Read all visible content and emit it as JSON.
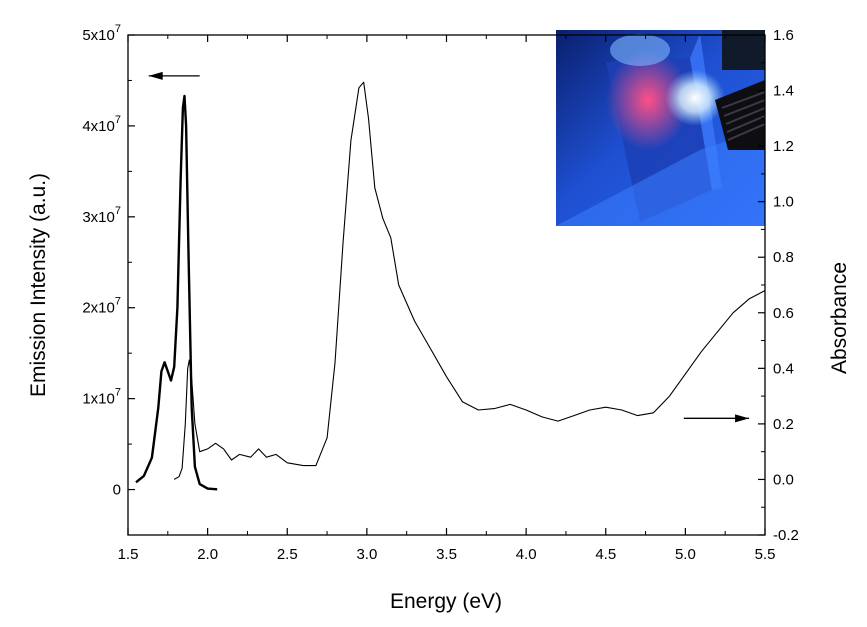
{
  "chart_data": {
    "type": "line",
    "xlabel": "Energy (eV)",
    "ylabel_left": "Emission Intensity (a.u.)",
    "ylabel_right": "Absorbance",
    "xlim": [
      1.5,
      5.5
    ],
    "ylim_left": [
      -5000000,
      50000000
    ],
    "ylim_right": [
      -0.2,
      1.6
    ],
    "x_ticks": [
      "1.5",
      "2.0",
      "2.5",
      "3.0",
      "3.5",
      "4.0",
      "4.5",
      "5.0",
      "5.5"
    ],
    "x_tick_values": [
      1.5,
      2.0,
      2.5,
      3.0,
      3.5,
      4.0,
      4.5,
      5.0,
      5.5
    ],
    "left_ticks": [
      {
        "value": 0,
        "mantissa": "0",
        "exponent": ""
      },
      {
        "value": 10000000,
        "mantissa": "1x10",
        "exponent": "7"
      },
      {
        "value": 20000000,
        "mantissa": "2x10",
        "exponent": "7"
      },
      {
        "value": 30000000,
        "mantissa": "3x10",
        "exponent": "7"
      },
      {
        "value": 40000000,
        "mantissa": "4x10",
        "exponent": "7"
      },
      {
        "value": 50000000,
        "mantissa": "5x10",
        "exponent": "7"
      }
    ],
    "right_ticks": [
      "-0.2",
      "0.0",
      "0.2",
      "0.4",
      "0.6",
      "0.8",
      "1.0",
      "1.2",
      "1.4",
      "1.6"
    ],
    "right_tick_values": [
      -0.2,
      0.0,
      0.2,
      0.4,
      0.6,
      0.8,
      1.0,
      1.2,
      1.4,
      1.6
    ],
    "series": [
      {
        "axis": "left",
        "points": [
          [
            1.55,
            800000
          ],
          [
            1.6,
            1500000
          ],
          [
            1.65,
            3500000
          ],
          [
            1.69,
            9000000
          ],
          [
            1.71,
            13000000
          ],
          [
            1.73,
            14000000
          ],
          [
            1.75,
            13000000
          ],
          [
            1.77,
            12000000
          ],
          [
            1.79,
            13500000
          ],
          [
            1.81,
            20000000
          ],
          [
            1.83,
            34000000
          ],
          [
            1.845,
            42000000
          ],
          [
            1.855,
            43300000
          ],
          [
            1.865,
            40000000
          ],
          [
            1.88,
            26000000
          ],
          [
            1.9,
            9000000
          ],
          [
            1.92,
            2500000
          ],
          [
            1.95,
            600000
          ],
          [
            2.0,
            100000
          ],
          [
            2.06,
            30000
          ]
        ]
      },
      {
        "axis": "right",
        "points": [
          [
            1.79,
            0.0
          ],
          [
            1.82,
            0.01
          ],
          [
            1.84,
            0.04
          ],
          [
            1.86,
            0.2
          ],
          [
            1.875,
            0.4
          ],
          [
            1.885,
            0.43
          ],
          [
            1.9,
            0.36
          ],
          [
            1.92,
            0.2
          ],
          [
            1.95,
            0.1
          ],
          [
            2.0,
            0.11
          ],
          [
            2.05,
            0.13
          ],
          [
            2.1,
            0.11
          ],
          [
            2.15,
            0.07
          ],
          [
            2.2,
            0.09
          ],
          [
            2.27,
            0.08
          ],
          [
            2.32,
            0.11
          ],
          [
            2.37,
            0.08
          ],
          [
            2.43,
            0.09
          ],
          [
            2.5,
            0.06
          ],
          [
            2.6,
            0.05
          ],
          [
            2.68,
            0.05
          ],
          [
            2.75,
            0.15
          ],
          [
            2.8,
            0.42
          ],
          [
            2.85,
            0.85
          ],
          [
            2.9,
            1.22
          ],
          [
            2.95,
            1.41
          ],
          [
            2.98,
            1.43
          ],
          [
            3.01,
            1.3
          ],
          [
            3.05,
            1.05
          ],
          [
            3.1,
            0.94
          ],
          [
            3.15,
            0.87
          ],
          [
            3.2,
            0.7
          ],
          [
            3.3,
            0.57
          ],
          [
            3.4,
            0.47
          ],
          [
            3.5,
            0.37
          ],
          [
            3.6,
            0.28
          ],
          [
            3.7,
            0.25
          ],
          [
            3.8,
            0.255
          ],
          [
            3.9,
            0.27
          ],
          [
            4.0,
            0.25
          ],
          [
            4.1,
            0.225
          ],
          [
            4.2,
            0.21
          ],
          [
            4.3,
            0.23
          ],
          [
            4.4,
            0.25
          ],
          [
            4.5,
            0.26
          ],
          [
            4.6,
            0.25
          ],
          [
            4.7,
            0.23
          ],
          [
            4.8,
            0.24
          ],
          [
            4.9,
            0.3
          ],
          [
            5.0,
            0.38
          ],
          [
            5.1,
            0.46
          ],
          [
            5.2,
            0.53
          ],
          [
            5.3,
            0.6
          ],
          [
            5.4,
            0.65
          ],
          [
            5.5,
            0.68
          ]
        ]
      }
    ],
    "arrows": [
      {
        "points_to": "left",
        "axis": "left",
        "x_from": 1.95,
        "x_to": 1.63,
        "y": 45500000
      },
      {
        "points_to": "right",
        "axis": "right",
        "x_from": 4.99,
        "x_to": 5.4,
        "y": 0.22
      }
    ],
    "inset_photo": {
      "position": "top-right",
      "colors": [
        "#0a2a8a",
        "#2c66ee",
        "#ff3f7a",
        "#d8f0ff",
        "#111111"
      ]
    }
  }
}
